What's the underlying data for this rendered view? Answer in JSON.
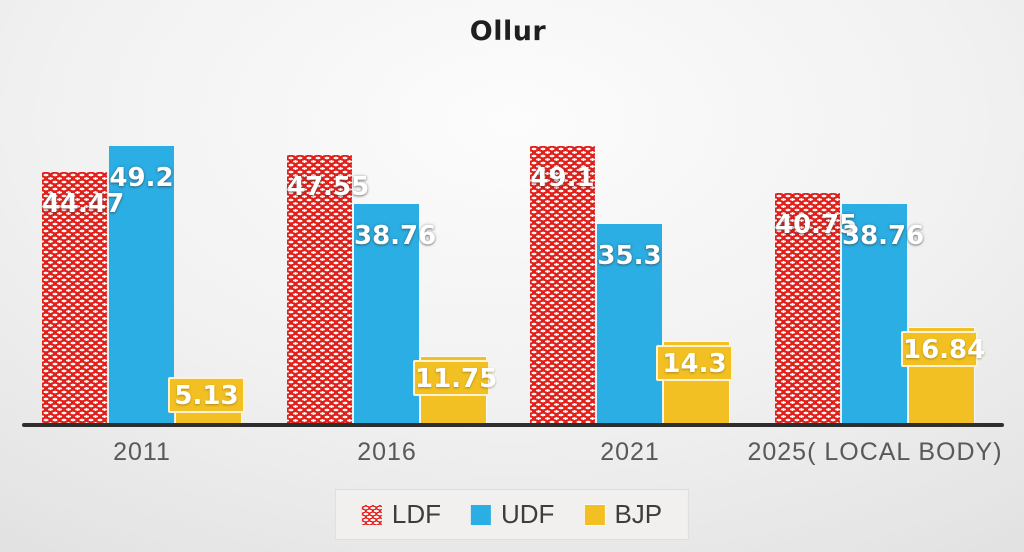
{
  "title": "Ollur",
  "colors": {
    "ldf": "#E0201A",
    "udf": "#2BAEE4",
    "bjp": "#F2C022",
    "axis_line": "#2e2e2e",
    "tick_text": "#595959",
    "legend_text": "#3d3d3d",
    "data_label_text": "#ffffff",
    "title_text": "#1f1f1f"
  },
  "chart_data": {
    "type": "bar",
    "title": "Ollur",
    "categories": [
      "2011",
      "2016",
      "2021",
      "2025( LOCAL BODY)"
    ],
    "series": [
      {
        "name": "LDF",
        "color": "#E0201A",
        "pattern": "dotted-weave",
        "values": [
          44.47,
          47.55,
          49.1,
          40.75
        ]
      },
      {
        "name": "UDF",
        "color": "#2BAEE4",
        "pattern": "solid",
        "values": [
          49.2,
          38.76,
          35.3,
          38.76
        ]
      },
      {
        "name": "BJP",
        "color": "#F2C022",
        "pattern": "solid",
        "values": [
          5.13,
          11.75,
          14.3,
          16.84
        ]
      }
    ],
    "ylim": [
      0,
      52
    ],
    "xlabel": "",
    "ylabel": "",
    "grid": false,
    "y_axis_visible": false,
    "data_labels": true,
    "legend_position": "bottom"
  }
}
